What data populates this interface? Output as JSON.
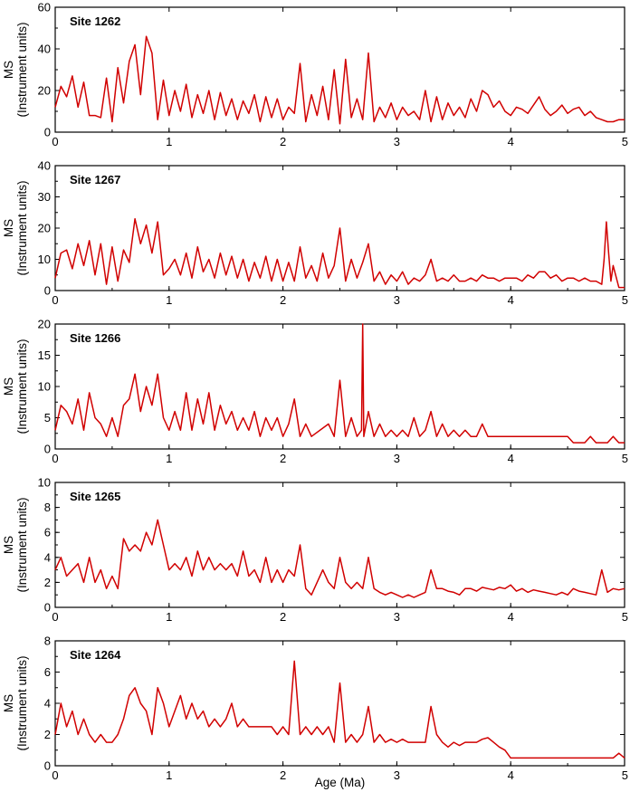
{
  "chart_data": [
    {
      "type": "line",
      "title": "Site 1262",
      "ylabel": [
        "MS",
        "(Instrument units)"
      ],
      "xlabel": "",
      "xlim": [
        0,
        5
      ],
      "ylim": [
        0,
        60
      ],
      "xticks": [
        "0",
        "1",
        "2",
        "3",
        "4",
        "5"
      ],
      "yticks": [
        "0",
        "20",
        "40",
        "60"
      ],
      "series": [
        {
          "color": "#d10000",
          "x": [
            0,
            0.05,
            0.1,
            0.15,
            0.2,
            0.25,
            0.3,
            0.35,
            0.4,
            0.45,
            0.5,
            0.55,
            0.6,
            0.65,
            0.7,
            0.75,
            0.8,
            0.85,
            0.9,
            0.95,
            1.0,
            1.05,
            1.1,
            1.15,
            1.2,
            1.25,
            1.3,
            1.35,
            1.4,
            1.45,
            1.5,
            1.55,
            1.6,
            1.65,
            1.7,
            1.75,
            1.8,
            1.85,
            1.9,
            1.95,
            2.0,
            2.05,
            2.1,
            2.15,
            2.2,
            2.25,
            2.3,
            2.35,
            2.4,
            2.45,
            2.5,
            2.55,
            2.6,
            2.65,
            2.7,
            2.75,
            2.8,
            2.85,
            2.9,
            2.95,
            3.0,
            3.05,
            3.1,
            3.15,
            3.2,
            3.25,
            3.3,
            3.35,
            3.4,
            3.45,
            3.5,
            3.55,
            3.6,
            3.65,
            3.7,
            3.75,
            3.8,
            3.85,
            3.9,
            3.95,
            4.0,
            4.05,
            4.1,
            4.15,
            4.2,
            4.25,
            4.3,
            4.35,
            4.4,
            4.45,
            4.5,
            4.55,
            4.6,
            4.65,
            4.7,
            4.75,
            4.8,
            4.85,
            4.9,
            4.95,
            5.0
          ],
          "y": [
            12,
            22,
            17,
            27,
            12,
            24,
            8,
            8,
            7,
            26,
            5,
            31,
            14,
            34,
            42,
            18,
            46,
            38,
            6,
            25,
            8,
            20,
            10,
            23,
            7,
            18,
            9,
            20,
            6,
            19,
            8,
            16,
            6,
            15,
            9,
            18,
            5,
            17,
            7,
            16,
            6,
            12,
            9,
            33,
            5,
            18,
            8,
            22,
            6,
            30,
            4,
            35,
            7,
            16,
            6,
            38,
            5,
            12,
            7,
            14,
            6,
            12,
            8,
            10,
            6,
            20,
            5,
            17,
            6,
            14,
            8,
            12,
            7,
            16,
            10,
            20,
            18,
            12,
            15,
            10,
            8,
            12,
            11,
            9,
            13,
            17,
            11,
            8,
            10,
            13,
            9,
            11,
            12,
            8,
            10,
            7,
            6,
            5,
            5,
            6,
            6
          ]
        }
      ]
    },
    {
      "type": "line",
      "title": "Site 1267",
      "ylabel": [
        "MS",
        "(Instrument units)"
      ],
      "xlabel": "",
      "xlim": [
        0,
        5
      ],
      "ylim": [
        0,
        40
      ],
      "xticks": [
        "0",
        "1",
        "2",
        "3",
        "4",
        "5"
      ],
      "yticks": [
        "0",
        "10",
        "20",
        "30",
        "40"
      ],
      "series": [
        {
          "color": "#d10000",
          "x": [
            0,
            0.05,
            0.1,
            0.15,
            0.2,
            0.25,
            0.3,
            0.35,
            0.4,
            0.45,
            0.5,
            0.55,
            0.6,
            0.65,
            0.7,
            0.75,
            0.8,
            0.85,
            0.9,
            0.95,
            1.0,
            1.05,
            1.1,
            1.15,
            1.2,
            1.25,
            1.3,
            1.35,
            1.4,
            1.45,
            1.5,
            1.55,
            1.6,
            1.65,
            1.7,
            1.75,
            1.8,
            1.85,
            1.9,
            1.95,
            2.0,
            2.05,
            2.1,
            2.15,
            2.2,
            2.25,
            2.3,
            2.35,
            2.4,
            2.45,
            2.5,
            2.55,
            2.6,
            2.65,
            2.7,
            2.75,
            2.8,
            2.85,
            2.9,
            2.95,
            3.0,
            3.05,
            3.1,
            3.15,
            3.2,
            3.25,
            3.3,
            3.35,
            3.4,
            3.45,
            3.5,
            3.55,
            3.6,
            3.65,
            3.7,
            3.75,
            3.8,
            3.85,
            3.9,
            3.95,
            4.0,
            4.05,
            4.1,
            4.15,
            4.2,
            4.25,
            4.3,
            4.35,
            4.4,
            4.45,
            4.5,
            4.55,
            4.6,
            4.65,
            4.7,
            4.75,
            4.8,
            4.82,
            4.84,
            4.86,
            4.88,
            4.9,
            4.95,
            5.0
          ],
          "y": [
            4,
            12,
            13,
            7,
            15,
            8,
            16,
            5,
            15,
            2,
            14,
            3,
            13,
            9,
            23,
            15,
            21,
            12,
            22,
            5,
            7,
            10,
            5,
            12,
            4,
            14,
            6,
            10,
            4,
            12,
            5,
            11,
            4,
            10,
            3,
            9,
            4,
            11,
            3,
            10,
            3,
            9,
            3,
            14,
            4,
            8,
            3,
            12,
            4,
            8,
            20,
            3,
            10,
            4,
            9,
            15,
            3,
            6,
            2,
            5,
            3,
            6,
            2,
            4,
            3,
            5,
            10,
            3,
            4,
            3,
            5,
            3,
            3,
            4,
            3,
            5,
            4,
            4,
            3,
            4,
            4,
            4,
            3,
            5,
            4,
            6,
            6,
            4,
            5,
            3,
            4,
            4,
            3,
            4,
            3,
            3,
            2,
            10,
            22,
            12,
            3,
            8,
            1,
            1
          ]
        }
      ]
    },
    {
      "type": "line",
      "title": "Site 1266",
      "ylabel": [
        "MS",
        "(Instrument units)"
      ],
      "xlabel": "",
      "xlim": [
        0,
        5
      ],
      "ylim": [
        0,
        20
      ],
      "xticks": [
        "0",
        "1",
        "2",
        "3",
        "4",
        "5"
      ],
      "yticks": [
        "0",
        "5",
        "10",
        "15",
        "20"
      ],
      "series": [
        {
          "color": "#d10000",
          "x": [
            0,
            0.05,
            0.1,
            0.15,
            0.2,
            0.25,
            0.3,
            0.35,
            0.4,
            0.45,
            0.5,
            0.55,
            0.6,
            0.65,
            0.7,
            0.75,
            0.8,
            0.85,
            0.9,
            0.95,
            1.0,
            1.05,
            1.1,
            1.15,
            1.2,
            1.25,
            1.3,
            1.35,
            1.4,
            1.45,
            1.5,
            1.55,
            1.6,
            1.65,
            1.7,
            1.75,
            1.8,
            1.85,
            1.9,
            1.95,
            2.0,
            2.05,
            2.1,
            2.15,
            2.2,
            2.25,
            2.4,
            2.45,
            2.5,
            2.55,
            2.6,
            2.65,
            2.69,
            2.7,
            2.71,
            2.75,
            2.8,
            2.85,
            2.9,
            2.95,
            3.0,
            3.05,
            3.1,
            3.15,
            3.2,
            3.25,
            3.3,
            3.35,
            3.4,
            3.45,
            3.5,
            3.55,
            3.6,
            3.65,
            3.7,
            3.75,
            3.8,
            3.85,
            3.9,
            3.95,
            4.0,
            4.05,
            4.1,
            4.15,
            4.2,
            4.25,
            4.3,
            4.35,
            4.4,
            4.45,
            4.5,
            4.55,
            4.6,
            4.65,
            4.7,
            4.75,
            4.8,
            4.85,
            4.9,
            4.95,
            5.0
          ],
          "y": [
            3,
            7,
            6,
            4,
            8,
            3,
            9,
            5,
            4,
            2,
            5,
            2,
            7,
            8,
            12,
            6,
            10,
            7,
            12,
            5,
            3,
            6,
            3,
            9,
            3,
            8,
            4,
            9,
            3,
            7,
            4,
            6,
            3,
            5,
            3,
            6,
            2,
            5,
            3,
            5,
            2,
            4,
            8,
            2,
            4,
            2,
            4,
            2,
            11,
            2,
            5,
            2,
            3,
            20,
            2,
            6,
            2,
            4,
            2,
            3,
            2,
            3,
            2,
            5,
            2,
            3,
            6,
            2,
            4,
            2,
            3,
            2,
            3,
            2,
            2,
            4,
            2,
            2,
            2,
            2,
            2,
            2,
            2,
            2,
            2,
            2,
            2,
            2,
            2,
            2,
            2,
            1,
            1,
            1,
            2,
            1,
            1,
            1,
            2,
            1,
            1
          ]
        }
      ]
    },
    {
      "type": "line",
      "title": "Site 1265",
      "ylabel": [
        "MS",
        "(Instrument units)"
      ],
      "xlabel": "",
      "xlim": [
        0,
        5
      ],
      "ylim": [
        0,
        10
      ],
      "xticks": [
        "0",
        "1",
        "2",
        "3",
        "4",
        "5"
      ],
      "yticks": [
        "0",
        "2",
        "4",
        "6",
        "8",
        "10"
      ],
      "series": [
        {
          "color": "#d10000",
          "x": [
            0,
            0.05,
            0.1,
            0.15,
            0.2,
            0.25,
            0.3,
            0.35,
            0.4,
            0.45,
            0.5,
            0.55,
            0.6,
            0.65,
            0.7,
            0.75,
            0.8,
            0.85,
            0.9,
            0.95,
            1.0,
            1.05,
            1.1,
            1.15,
            1.2,
            1.25,
            1.3,
            1.35,
            1.4,
            1.45,
            1.5,
            1.55,
            1.6,
            1.65,
            1.7,
            1.75,
            1.8,
            1.85,
            1.9,
            1.95,
            2.0,
            2.05,
            2.1,
            2.15,
            2.2,
            2.25,
            2.3,
            2.35,
            2.4,
            2.45,
            2.5,
            2.55,
            2.6,
            2.65,
            2.7,
            2.75,
            2.8,
            2.85,
            2.9,
            2.95,
            3.0,
            3.05,
            3.1,
            3.15,
            3.2,
            3.25,
            3.3,
            3.35,
            3.4,
            3.45,
            3.5,
            3.55,
            3.6,
            3.65,
            3.7,
            3.75,
            3.8,
            3.85,
            3.9,
            3.95,
            4.0,
            4.05,
            4.1,
            4.15,
            4.2,
            4.25,
            4.3,
            4.35,
            4.4,
            4.45,
            4.5,
            4.55,
            4.6,
            4.65,
            4.7,
            4.75,
            4.8,
            4.85,
            4.9,
            4.95,
            5.0
          ],
          "y": [
            3,
            4,
            2.5,
            3,
            3.5,
            2,
            4,
            2,
            3,
            1.5,
            2.5,
            1.5,
            5.5,
            4.5,
            5,
            4.5,
            6,
            5,
            7,
            5,
            3,
            3.5,
            3,
            4,
            2.5,
            4.5,
            3,
            4,
            3,
            3.5,
            3,
            3.5,
            2.5,
            4.5,
            2.5,
            3,
            2,
            4,
            2,
            3,
            2,
            3,
            2.5,
            5,
            1.5,
            1,
            2,
            3,
            2,
            1.5,
            4,
            2,
            1.5,
            2,
            1.5,
            4,
            1.5,
            1.2,
            1,
            1.2,
            1,
            0.8,
            1,
            0.8,
            1,
            1.2,
            3,
            1.5,
            1.5,
            1.3,
            1.2,
            1,
            1.5,
            1.5,
            1.3,
            1.6,
            1.5,
            1.4,
            1.6,
            1.5,
            1.8,
            1.3,
            1.5,
            1.2,
            1.4,
            1.3,
            1.2,
            1.1,
            1,
            1.2,
            1,
            1.5,
            1.3,
            1.2,
            1.1,
            1,
            3,
            1.2,
            1.5,
            1.4,
            1.5
          ]
        }
      ]
    },
    {
      "type": "line",
      "title": "Site 1264",
      "ylabel": [
        "MS",
        "(Instrument units)"
      ],
      "xlabel": "Age (Ma)",
      "xlim": [
        0,
        5
      ],
      "ylim": [
        0,
        8
      ],
      "xticks": [
        "0",
        "1",
        "2",
        "3",
        "4",
        "5"
      ],
      "yticks": [
        "0",
        "2",
        "4",
        "6",
        "8"
      ],
      "series": [
        {
          "color": "#d10000",
          "x": [
            0,
            0.05,
            0.1,
            0.15,
            0.2,
            0.25,
            0.3,
            0.35,
            0.4,
            0.45,
            0.5,
            0.55,
            0.6,
            0.65,
            0.7,
            0.75,
            0.8,
            0.85,
            0.9,
            0.95,
            1.0,
            1.05,
            1.1,
            1.15,
            1.2,
            1.25,
            1.3,
            1.35,
            1.4,
            1.45,
            1.5,
            1.55,
            1.6,
            1.65,
            1.7,
            1.75,
            1.8,
            1.85,
            1.9,
            1.95,
            2.0,
            2.05,
            2.1,
            2.15,
            2.2,
            2.25,
            2.3,
            2.35,
            2.4,
            2.45,
            2.5,
            2.55,
            2.6,
            2.65,
            2.7,
            2.75,
            2.8,
            2.85,
            2.9,
            2.95,
            3.0,
            3.05,
            3.1,
            3.15,
            3.2,
            3.25,
            3.3,
            3.35,
            3.4,
            3.45,
            3.5,
            3.55,
            3.6,
            3.65,
            3.7,
            3.75,
            3.8,
            3.85,
            3.9,
            3.95,
            4.0,
            4.05,
            4.1,
            4.15,
            4.2,
            4.25,
            4.3,
            4.35,
            4.4,
            4.45,
            4.5,
            4.55,
            4.6,
            4.65,
            4.7,
            4.75,
            4.8,
            4.85,
            4.9,
            4.95,
            5.0
          ],
          "y": [
            2,
            4,
            2.5,
            3.5,
            2,
            3,
            2,
            1.5,
            2,
            1.5,
            1.5,
            2,
            3,
            4.5,
            5,
            4,
            3.5,
            2,
            5,
            4,
            2.5,
            3.5,
            4.5,
            3,
            4,
            3,
            3.5,
            2.5,
            3,
            2.5,
            3,
            4,
            2.5,
            3,
            2.5,
            2.5,
            2.5,
            2.5,
            2.5,
            2,
            2.5,
            2,
            6.7,
            2,
            2.5,
            2,
            2.5,
            2,
            2.5,
            1.5,
            5.3,
            1.5,
            2,
            1.5,
            2,
            3.8,
            1.5,
            2,
            1.5,
            1.7,
            1.5,
            1.7,
            1.5,
            1.5,
            1.5,
            1.5,
            3.8,
            2,
            1.5,
            1.2,
            1.5,
            1.3,
            1.5,
            1.5,
            1.5,
            1.7,
            1.8,
            1.5,
            1.2,
            1,
            0.5,
            0.5,
            0.5,
            0.5,
            0.5,
            0.5,
            0.5,
            0.5,
            0.5,
            0.5,
            0.5,
            0.5,
            0.5,
            0.5,
            0.5,
            0.5,
            0.5,
            0.5,
            0.5,
            0.8,
            0.5
          ]
        }
      ]
    }
  ]
}
